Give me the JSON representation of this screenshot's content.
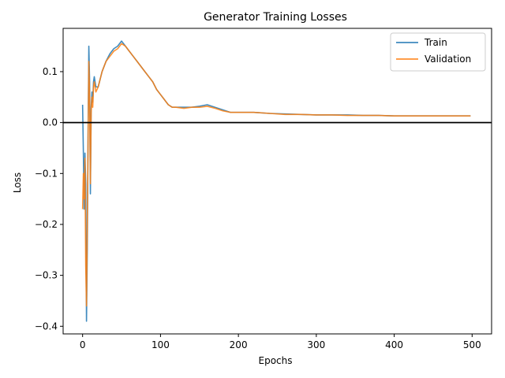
{
  "chart_data": {
    "type": "line",
    "title": "Generator Training Losses",
    "xlabel": "Epochs",
    "ylabel": "Loss",
    "xlim": [
      -25,
      525
    ],
    "ylim": [
      -0.415,
      0.185
    ],
    "xticks": [
      0,
      100,
      200,
      300,
      400,
      500
    ],
    "yticks": [
      -0.4,
      -0.3,
      -0.2,
      -0.1,
      0.0,
      0.1
    ],
    "ytick_labels": [
      "−0.4",
      "−0.3",
      "−0.2",
      "−0.1",
      "0.0",
      "0.1"
    ],
    "grid": false,
    "legend_placement": "top-right",
    "reference_line": {
      "y": 0.0,
      "color": "#000000"
    },
    "series": [
      {
        "name": "Train",
        "color": "#1f77b4",
        "x": [
          0,
          1,
          2,
          3,
          4,
          5,
          6,
          7,
          8,
          9,
          10,
          11,
          12,
          13,
          14,
          15,
          17,
          20,
          25,
          30,
          35,
          40,
          45,
          50,
          55,
          60,
          65,
          70,
          75,
          80,
          85,
          90,
          95,
          100,
          105,
          110,
          115,
          120,
          130,
          140,
          150,
          160,
          170,
          180,
          190,
          200,
          220,
          240,
          260,
          280,
          300,
          320,
          340,
          360,
          380,
          400,
          420,
          440,
          460,
          480,
          498
        ],
        "values": [
          0.035,
          -0.06,
          -0.17,
          -0.06,
          -0.12,
          -0.39,
          -0.25,
          -0.03,
          0.15,
          0.08,
          -0.14,
          0.03,
          0.06,
          0.04,
          0.08,
          0.09,
          0.07,
          0.07,
          0.1,
          0.12,
          0.135,
          0.145,
          0.15,
          0.16,
          0.15,
          0.14,
          0.13,
          0.12,
          0.11,
          0.1,
          0.09,
          0.08,
          0.065,
          0.055,
          0.045,
          0.035,
          0.03,
          0.03,
          0.03,
          0.03,
          0.032,
          0.035,
          0.03,
          0.025,
          0.02,
          0.02,
          0.02,
          0.018,
          0.017,
          0.016,
          0.015,
          0.015,
          0.015,
          0.014,
          0.014,
          0.013,
          0.013,
          0.013,
          0.013,
          0.013,
          0.013
        ]
      },
      {
        "name": "Validation",
        "color": "#ff7f0e",
        "x": [
          0,
          1,
          2,
          3,
          4,
          5,
          6,
          7,
          8,
          9,
          10,
          11,
          12,
          13,
          14,
          15,
          17,
          20,
          25,
          30,
          35,
          40,
          45,
          50,
          55,
          60,
          65,
          70,
          75,
          80,
          85,
          90,
          95,
          100,
          105,
          110,
          115,
          120,
          130,
          140,
          150,
          160,
          170,
          180,
          190,
          200,
          220,
          240,
          260,
          280,
          300,
          320,
          340,
          360,
          380,
          400,
          420,
          440,
          460,
          480,
          498
        ],
        "values": [
          -0.17,
          -0.1,
          -0.15,
          -0.07,
          -0.28,
          -0.36,
          -0.2,
          -0.04,
          0.12,
          0.05,
          -0.12,
          0.02,
          0.05,
          0.03,
          0.07,
          0.08,
          0.06,
          0.07,
          0.1,
          0.12,
          0.13,
          0.14,
          0.145,
          0.155,
          0.15,
          0.14,
          0.13,
          0.12,
          0.11,
          0.1,
          0.09,
          0.08,
          0.065,
          0.055,
          0.045,
          0.035,
          0.03,
          0.03,
          0.028,
          0.03,
          0.03,
          0.032,
          0.028,
          0.023,
          0.02,
          0.02,
          0.02,
          0.018,
          0.016,
          0.016,
          0.015,
          0.015,
          0.014,
          0.014,
          0.014,
          0.013,
          0.013,
          0.013,
          0.013,
          0.013,
          0.013
        ]
      }
    ]
  }
}
